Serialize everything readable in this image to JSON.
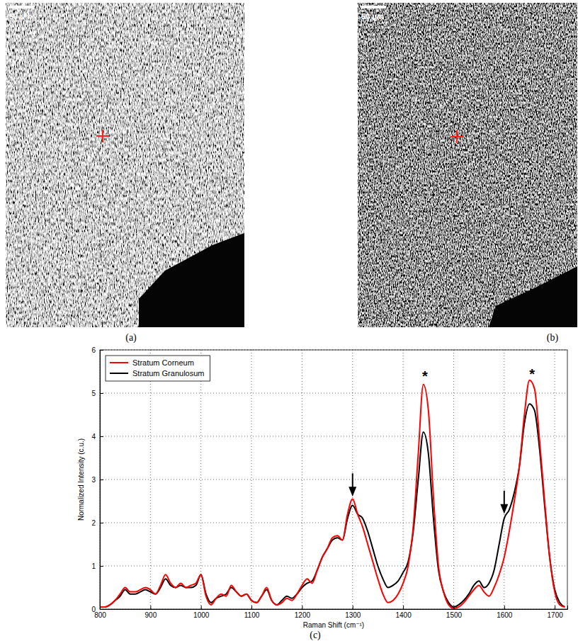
{
  "images": [
    {
      "panel_label": "(a)",
      "scale_bar": "50 μm"
    },
    {
      "panel_label": "(b)",
      "scale_bar": "50 μm"
    }
  ],
  "chart_label": "(c)",
  "chart_data": {
    "type": "line",
    "x_label": "Raman Shift (cm⁻¹)",
    "y_label": "Normalized Intensity (c.u.)",
    "x": [
      800,
      810,
      820,
      830,
      840,
      850,
      860,
      870,
      880,
      890,
      900,
      910,
      920,
      930,
      940,
      950,
      960,
      970,
      980,
      990,
      1000,
      1010,
      1020,
      1030,
      1040,
      1050,
      1060,
      1070,
      1080,
      1090,
      1100,
      1110,
      1120,
      1130,
      1140,
      1150,
      1160,
      1170,
      1180,
      1190,
      1200,
      1210,
      1220,
      1230,
      1240,
      1250,
      1260,
      1270,
      1280,
      1290,
      1300,
      1310,
      1320,
      1330,
      1340,
      1350,
      1360,
      1370,
      1380,
      1390,
      1400,
      1410,
      1420,
      1430,
      1440,
      1450,
      1460,
      1470,
      1480,
      1490,
      1500,
      1510,
      1520,
      1530,
      1540,
      1550,
      1560,
      1570,
      1580,
      1590,
      1600,
      1610,
      1620,
      1630,
      1640,
      1650,
      1660,
      1670,
      1680,
      1690,
      1700,
      1710,
      1720
    ],
    "series": [
      {
        "name": "Stratum Corneum",
        "color": "#ff0000",
        "values": [
          0.05,
          0.05,
          0.1,
          0.2,
          0.35,
          0.5,
          0.4,
          0.4,
          0.45,
          0.5,
          0.45,
          0.35,
          0.55,
          0.8,
          0.6,
          0.5,
          0.6,
          0.5,
          0.55,
          0.6,
          0.8,
          0.3,
          0.1,
          0.25,
          0.35,
          0.3,
          0.55,
          0.4,
          0.3,
          0.35,
          0.2,
          0.15,
          0.3,
          0.5,
          0.2,
          0.1,
          0.15,
          0.25,
          0.2,
          0.35,
          0.55,
          0.7,
          0.6,
          0.9,
          1.2,
          1.4,
          1.65,
          1.7,
          1.6,
          2.2,
          2.55,
          2.2,
          1.9,
          1.5,
          1.1,
          0.7,
          0.35,
          0.15,
          0.2,
          0.35,
          0.6,
          1.0,
          1.9,
          3.6,
          5.2,
          4.6,
          2.6,
          1.0,
          0.4,
          0.1,
          0.02,
          0.05,
          0.15,
          0.3,
          0.45,
          0.55,
          0.4,
          0.3,
          0.5,
          0.8,
          1.2,
          1.8,
          2.5,
          3.3,
          4.5,
          5.3,
          5.1,
          3.9,
          2.5,
          1.2,
          0.4,
          0.1,
          0.05
        ]
      },
      {
        "name": "Stratum Granulosum",
        "color": "#000000",
        "values": [
          0.05,
          0.05,
          0.1,
          0.2,
          0.3,
          0.45,
          0.35,
          0.35,
          0.4,
          0.45,
          0.4,
          0.35,
          0.5,
          0.7,
          0.55,
          0.5,
          0.55,
          0.5,
          0.5,
          0.55,
          0.8,
          0.35,
          0.15,
          0.25,
          0.3,
          0.35,
          0.5,
          0.4,
          0.3,
          0.35,
          0.2,
          0.15,
          0.3,
          0.45,
          0.2,
          0.1,
          0.2,
          0.3,
          0.25,
          0.35,
          0.5,
          0.6,
          0.65,
          0.9,
          1.2,
          1.4,
          1.6,
          1.65,
          1.6,
          2.1,
          2.4,
          2.2,
          2.1,
          1.8,
          1.4,
          1.0,
          0.7,
          0.5,
          0.55,
          0.65,
          0.85,
          1.1,
          1.8,
          3.0,
          4.1,
          3.6,
          2.1,
          0.9,
          0.4,
          0.15,
          0.05,
          0.1,
          0.2,
          0.35,
          0.55,
          0.65,
          0.5,
          0.6,
          0.9,
          1.5,
          2.1,
          2.3,
          2.7,
          3.3,
          4.3,
          4.75,
          4.6,
          3.7,
          2.4,
          1.2,
          0.45,
          0.15,
          0.05
        ]
      }
    ],
    "xlim": [
      800,
      1725
    ],
    "xticks": [
      800,
      900,
      1000,
      1100,
      1200,
      1300,
      1400,
      1500,
      1600,
      1700
    ],
    "ylim": [
      0,
      6
    ],
    "yticks": [
      0,
      1,
      2,
      3,
      4,
      5,
      6
    ],
    "grid": true,
    "legend": "upper left",
    "annotations": [
      {
        "x": 1300,
        "y": 2.65,
        "marker": "arrow"
      },
      {
        "x": 1600,
        "y": 2.25,
        "marker": "arrow"
      },
      {
        "text": "*",
        "x": 1443,
        "y": 5.45
      },
      {
        "text": "*",
        "x": 1655,
        "y": 5.5
      }
    ]
  }
}
